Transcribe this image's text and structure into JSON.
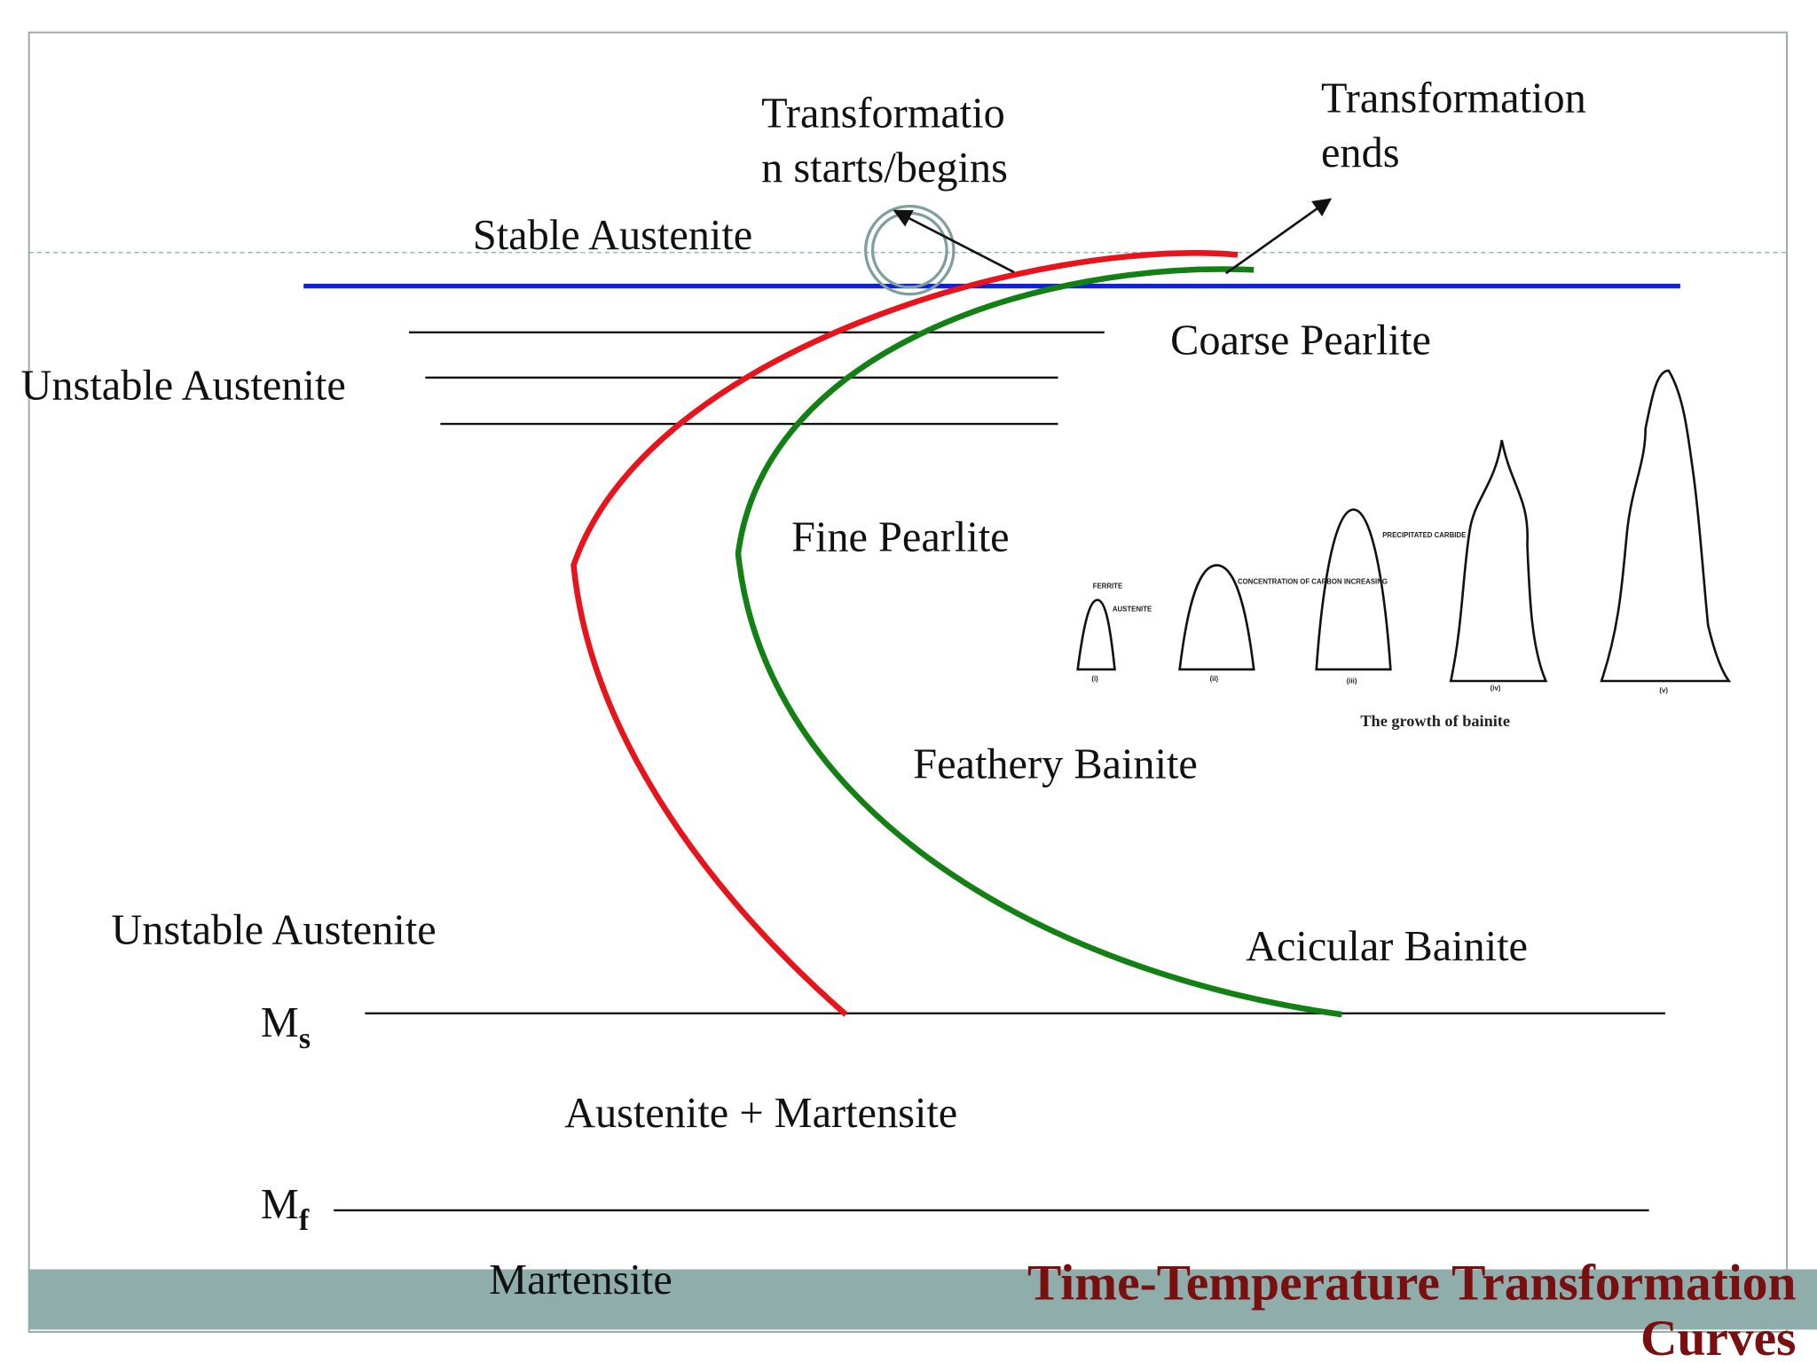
{
  "title": {
    "line1": "Time-Temperature Transformation",
    "line2": "Curves"
  },
  "labels": {
    "start_line1": "Transformatio",
    "start_line2": "n starts/begins",
    "end_line1": "Transformation",
    "end_line2": "ends",
    "stable_austenite": "Stable Austenite",
    "coarse_pearlite": "Coarse Pearlite",
    "unstable_austenite_upper": "Unstable Austenite",
    "fine_pearlite": "Fine Pearlite",
    "feathery_bainite": "Feathery Bainite",
    "unstable_austenite_lower": "Unstable Austenite",
    "acicular_bainite": "Acicular Bainite",
    "austenite_martensite": "Austenite + Martensite",
    "martensite": "Martensite"
  },
  "ms": {
    "main": "M",
    "sub": "s"
  },
  "mf": {
    "main": "M",
    "sub": "f"
  },
  "inset": {
    "caption": "The growth of bainite",
    "notes": [
      "FERRITE",
      "AUSTENITE",
      "CONCENTRATION OF CARBON INCREASING",
      "PRECIPITATED CARBIDE"
    ],
    "stages": [
      "(i)",
      "(ii)",
      "(iii)",
      "(iv)",
      "(v)"
    ]
  }
}
